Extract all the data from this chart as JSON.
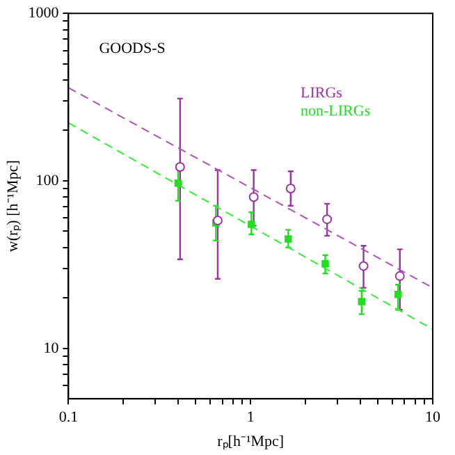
{
  "chart_data": {
    "type": "scatter",
    "xlabel": "rₚ[h⁻¹Mpc]",
    "ylabel": "w(rₚ) [h⁻¹Mpc]",
    "log": "xy",
    "grid": false,
    "legend": "top right",
    "xlim": [
      0.1,
      10
    ],
    "ylim": [
      5,
      1000
    ],
    "xticks": [
      0.1,
      {
        "value": 0.2,
        "label": null
      },
      {
        "value": 0.3,
        "label": null
      },
      {
        "value": 0.4,
        "label": null
      },
      {
        "value": 0.5,
        "label": null
      },
      {
        "value": 0.6,
        "label": null
      },
      {
        "value": 0.7,
        "label": null
      },
      {
        "value": 0.8,
        "label": null
      },
      {
        "value": 0.9,
        "label": null
      },
      1,
      {
        "value": 2,
        "label": null
      },
      {
        "value": 3,
        "label": null
      },
      {
        "value": 4,
        "label": null
      },
      {
        "value": 5,
        "label": null
      },
      {
        "value": 6,
        "label": null
      },
      {
        "value": 7,
        "label": null
      },
      {
        "value": 8,
        "label": null
      },
      {
        "value": 9,
        "label": null
      },
      10
    ],
    "yticks": [
      {
        "value": 6,
        "label": null
      },
      {
        "value": 7,
        "label": null
      },
      {
        "value": 8,
        "label": null
      },
      {
        "value": 9,
        "label": null
      },
      10,
      {
        "value": 20,
        "label": null
      },
      {
        "value": 30,
        "label": null
      },
      {
        "value": 40,
        "label": null
      },
      {
        "value": 50,
        "label": null
      },
      {
        "value": 60,
        "label": null
      },
      {
        "value": 70,
        "label": null
      },
      {
        "value": 80,
        "label": null
      },
      {
        "value": 90,
        "label": null
      },
      100,
      {
        "value": 200,
        "label": null
      },
      {
        "value": 300,
        "label": null
      },
      {
        "value": 400,
        "label": null
      },
      {
        "value": 500,
        "label": null
      },
      {
        "value": 600,
        "label": null
      },
      {
        "value": 700,
        "label": null
      },
      {
        "value": 800,
        "label": null
      },
      {
        "value": 900,
        "label": null
      },
      1000
    ],
    "annotations": [
      "GOODS-S"
    ],
    "series": [
      {
        "name": "LIRGs",
        "color": "#a030a8",
        "marker": "circle",
        "x": [
          0.41,
          0.66,
          1.04,
          1.66,
          2.63,
          4.17,
          6.6
        ],
        "values": [
          121,
          58,
          80,
          90,
          59,
          31,
          27
        ],
        "errors": [
          [
            34,
            310
          ],
          [
            26,
            116
          ],
          [
            54,
            116
          ],
          [
            71,
            114
          ],
          [
            47,
            73
          ],
          [
            23,
            41
          ],
          [
            17,
            39
          ]
        ]
      },
      {
        "name": "non-LIRGs",
        "color": "#22dd22",
        "marker": "square",
        "x": [
          0.4,
          0.645,
          1.01,
          1.61,
          2.57,
          4.07,
          6.45
        ],
        "values": [
          97,
          56,
          55,
          45,
          32,
          19,
          21
        ],
        "errors": [
          [
            76,
            124
          ],
          [
            44,
            71
          ],
          [
            48,
            65
          ],
          [
            40,
            51
          ],
          [
            28,
            36
          ],
          [
            16,
            22
          ],
          [
            17,
            24
          ]
        ]
      },
      {
        "type": "line",
        "color": "#b050c0",
        "line_style": "dashed",
        "marker": "none",
        "x": [
          0.1,
          10
        ],
        "values": [
          360,
          23
        ]
      },
      {
        "type": "line",
        "color": "#33ee33",
        "line_style": "dashed",
        "marker": "none",
        "x": [
          0.1,
          10
        ],
        "values": [
          222,
          13
        ]
      }
    ]
  }
}
